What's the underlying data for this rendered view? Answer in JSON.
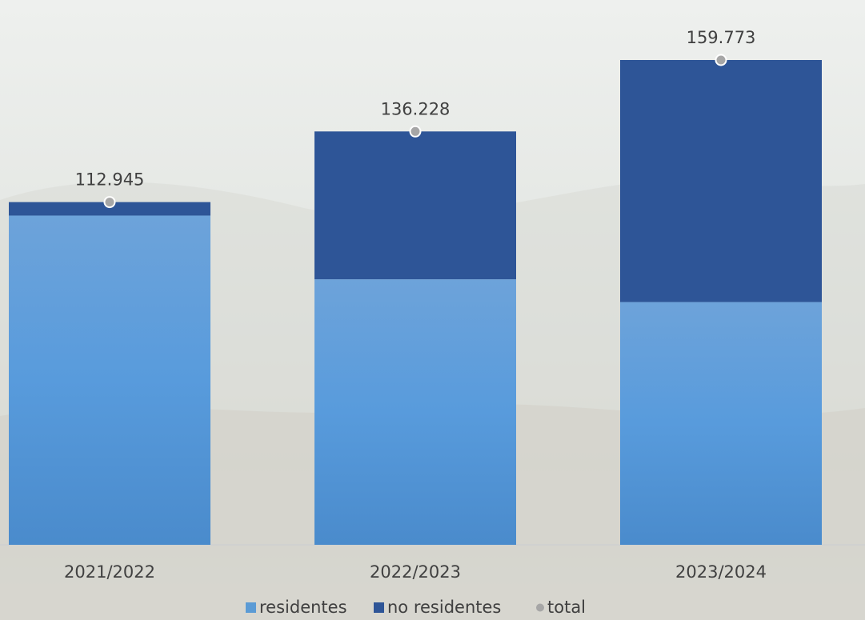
{
  "chart_data": {
    "type": "bar",
    "stacked": true,
    "categories": [
      "2021/2022",
      "2022/2023",
      "2023/2024"
    ],
    "series": [
      {
        "name": "residentes",
        "values": [
          108500,
          87500,
          80000
        ],
        "color": "#5b9bd5"
      },
      {
        "name": "no residentes",
        "values": [
          4445,
          48728,
          79773
        ],
        "color": "#2e5597"
      }
    ],
    "totals": {
      "name": "total",
      "values": [
        112945,
        136228,
        159773
      ],
      "labels": [
        "112.945",
        "136.228",
        "159.773"
      ],
      "color": "#a6a6a6"
    },
    "title": "",
    "xlabel": "",
    "ylabel": "",
    "ylim": [
      0,
      169000
    ],
    "grid": false,
    "legend": "bottom"
  }
}
